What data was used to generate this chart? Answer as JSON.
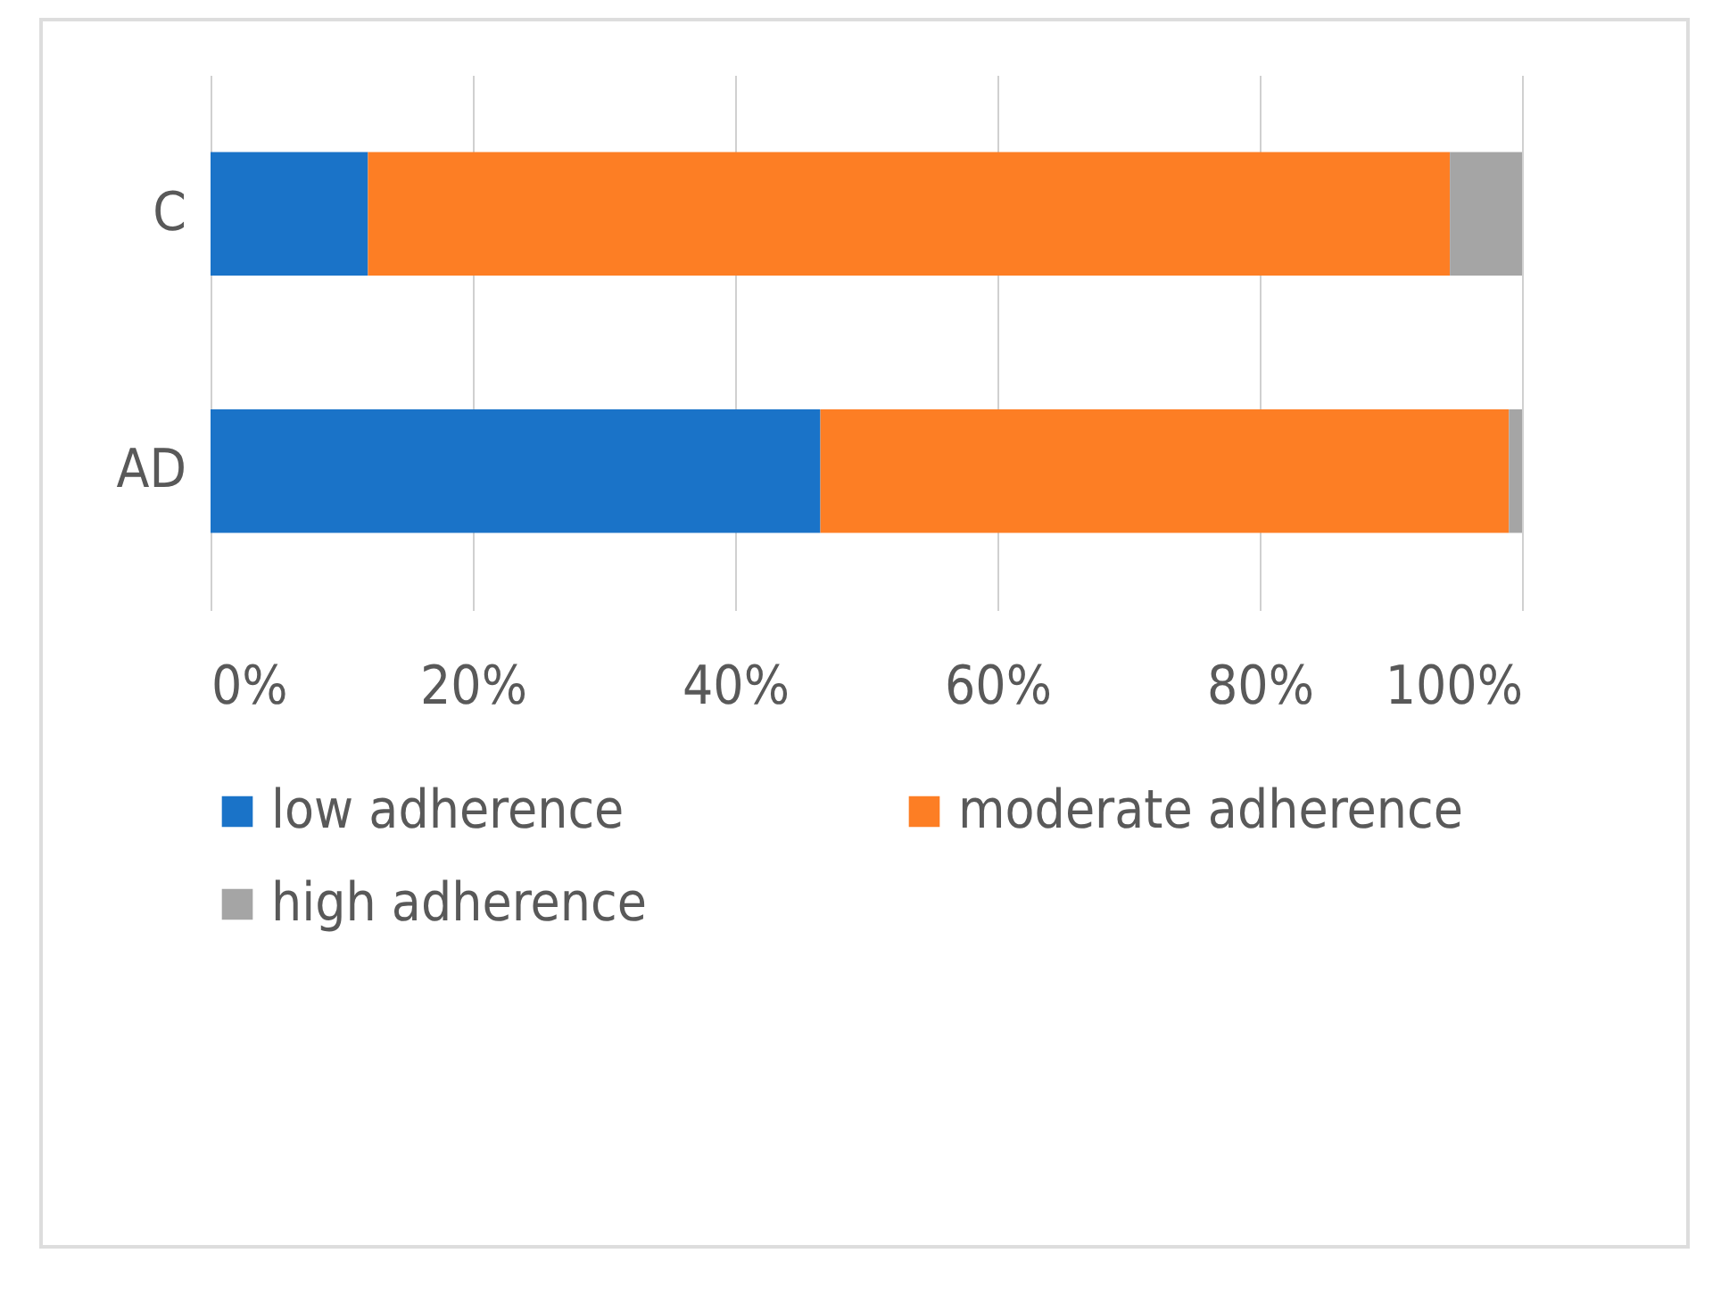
{
  "chart_data": {
    "type": "bar",
    "orientation": "horizontal",
    "stacked": true,
    "categories": [
      "C",
      "AD"
    ],
    "series": [
      {
        "name": "low adherence",
        "color": "#1a73c8",
        "values": [
          12,
          46.5
        ]
      },
      {
        "name": "moderate adherence",
        "color": "#fd7e24",
        "values": [
          82.5,
          52.5
        ]
      },
      {
        "name": "high adherence",
        "color": "#a5a5a5",
        "values": [
          5.5,
          1
        ]
      }
    ],
    "xlim": [
      0,
      100
    ],
    "xticks": [
      {
        "value": 0,
        "label": "0%"
      },
      {
        "value": 20,
        "label": "20%"
      },
      {
        "value": 40,
        "label": "40%"
      },
      {
        "value": 60,
        "label": "60%"
      },
      {
        "value": 80,
        "label": "80%"
      },
      {
        "value": 100,
        "label": "100%"
      }
    ],
    "grid": "x",
    "legend": "bottom"
  }
}
